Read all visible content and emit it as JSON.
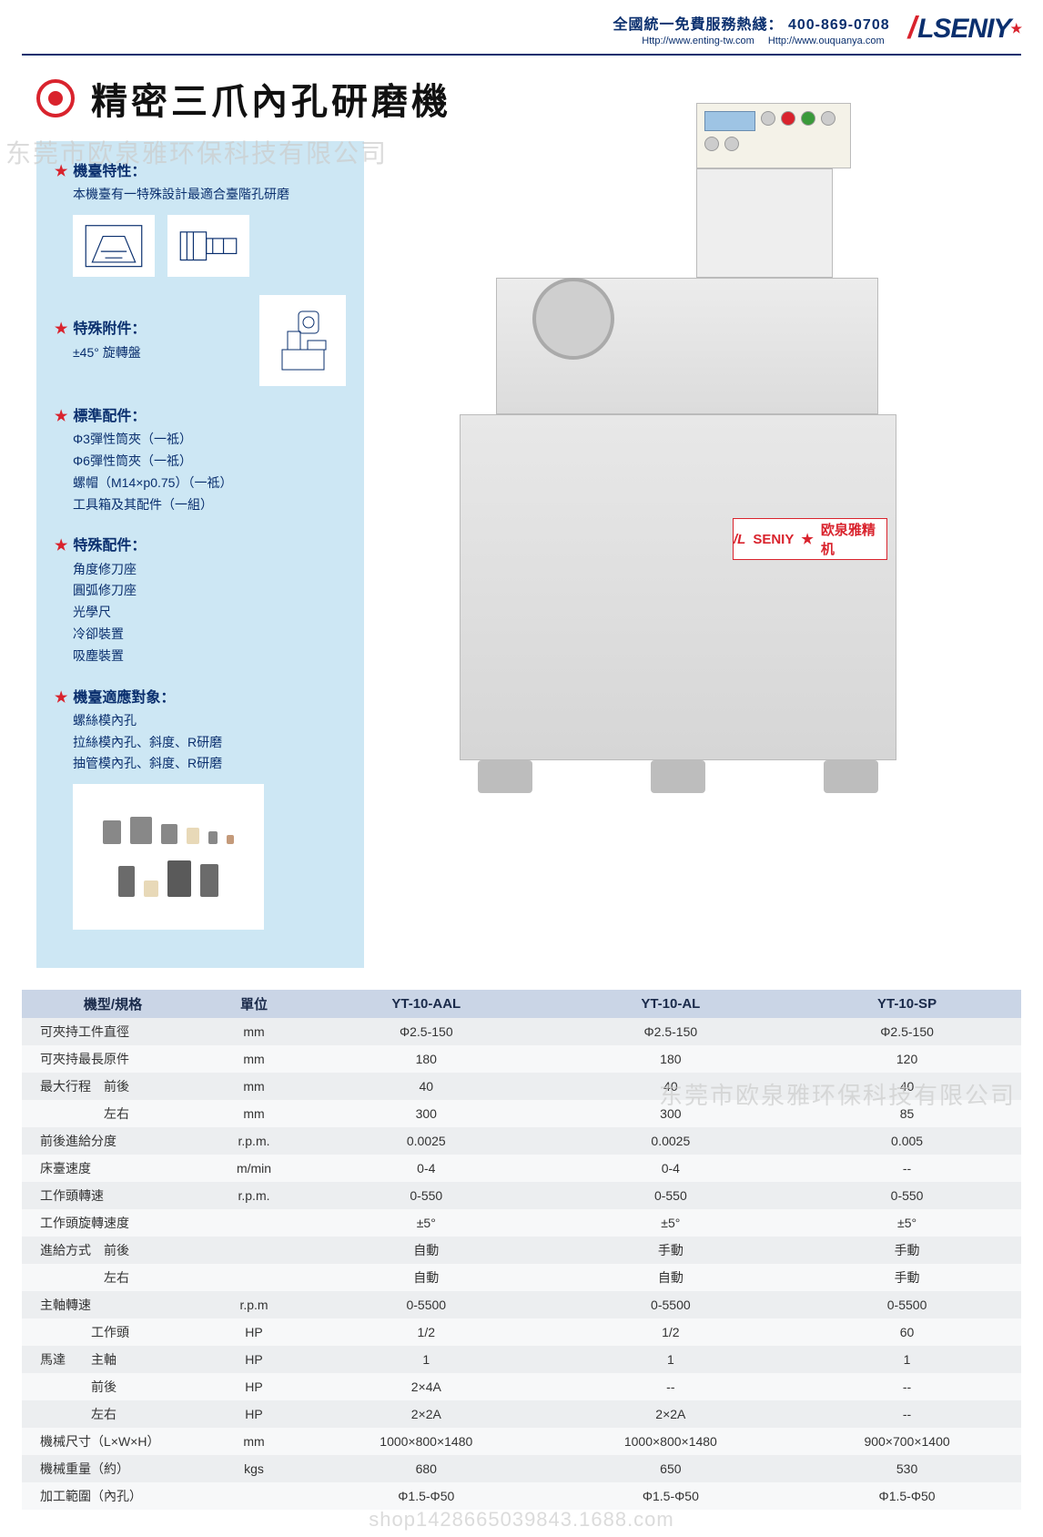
{
  "header": {
    "hotline_label": "全國統一免費服務熱綫：",
    "hotline_number": "400-869-0708",
    "url1": "Http://www.enting-tw.com",
    "url2": "Http://www.ouquanya.com",
    "logo_text": "SENIY"
  },
  "title": "精密三爪內孔研磨機",
  "watermark_company": "东莞市欧泉雅环保科技有限公司",
  "watermark_shop": "shop1428665039843.1688.com",
  "side": {
    "feature_heading": "機臺特性：",
    "feature_body": "本機臺有一特殊設計最適合臺階孔研磨",
    "attach_heading": "特殊附件：",
    "attach_body": "±45° 旋轉盤",
    "std_heading": "標準配件：",
    "std_items": [
      "Φ3彈性筒夾（一祗）",
      "Φ6彈性筒夾（一祗）",
      "螺帽（M14×p0.75）（一祗）",
      "工具箱及其配件（一組）"
    ],
    "opt_heading": "特殊配件：",
    "opt_items": [
      "角度修刀座",
      "圓弧修刀座",
      "光學尺",
      "冷卻裝置",
      "吸塵裝置"
    ],
    "app_heading": "機臺適應對象：",
    "app_items": [
      "螺絲模內孔",
      "拉絲模內孔、斜度、R研磨",
      "抽管模內孔、斜度、R研磨"
    ]
  },
  "machine_label_brand": "SENIY",
  "machine_label_cn": "欧泉雅精机",
  "spec": {
    "columns": [
      "機型/規格",
      "單位",
      "YT-10-AAL",
      "YT-10-AL",
      "YT-10-SP"
    ],
    "rows": [
      [
        "可夾持工件直徑",
        "mm",
        "Φ2.5-150",
        "Φ2.5-150",
        "Φ2.5-150"
      ],
      [
        "可夾持最長原件",
        "mm",
        "180",
        "180",
        "120"
      ],
      [
        "最大行程　前後",
        "mm",
        "40",
        "40",
        "40"
      ],
      [
        "　　　　　左右",
        "mm",
        "300",
        "300",
        "85"
      ],
      [
        "前後進給分度",
        "r.p.m.",
        "0.0025",
        "0.0025",
        "0.005"
      ],
      [
        "床臺速度",
        "m/min",
        "0-4",
        "0-4",
        "--"
      ],
      [
        "工作頭轉速",
        "r.p.m.",
        "0-550",
        "0-550",
        "0-550"
      ],
      [
        "工作頭旋轉速度",
        "",
        "±5°",
        "±5°",
        "±5°"
      ],
      [
        "進給方式　前後",
        "",
        "自動",
        "手動",
        "手動"
      ],
      [
        "　　　　　左右",
        "",
        "自動",
        "自動",
        "手動"
      ],
      [
        "主軸轉速",
        "r.p.m",
        "0-5500",
        "0-5500",
        "0-5500"
      ],
      [
        "　　　　工作頭",
        "HP",
        "1/2",
        "1/2",
        "60"
      ],
      [
        "馬達　　主軸",
        "HP",
        "1",
        "1",
        "1"
      ],
      [
        "　　　　前後",
        "HP",
        "2×4A",
        "--",
        "--"
      ],
      [
        "　　　　左右",
        "HP",
        "2×2A",
        "2×2A",
        "--"
      ],
      [
        "機械尺寸（L×W×H）",
        "mm",
        "1000×800×1480",
        "1000×800×1480",
        "900×700×1400"
      ],
      [
        "機械重量（約）",
        "kgs",
        "680",
        "650",
        "530"
      ],
      [
        "加工範圍（內孔）",
        "",
        "Φ1.5-Φ50",
        "Φ1.5-Φ50",
        "Φ1.5-Φ50"
      ]
    ]
  },
  "colors": {
    "navy": "#0a2f6e",
    "red": "#d9232d",
    "panel": "#cde7f4",
    "th": "#cad5e6",
    "row_odd": "#eceef0",
    "row_even": "#f7f8f9"
  }
}
